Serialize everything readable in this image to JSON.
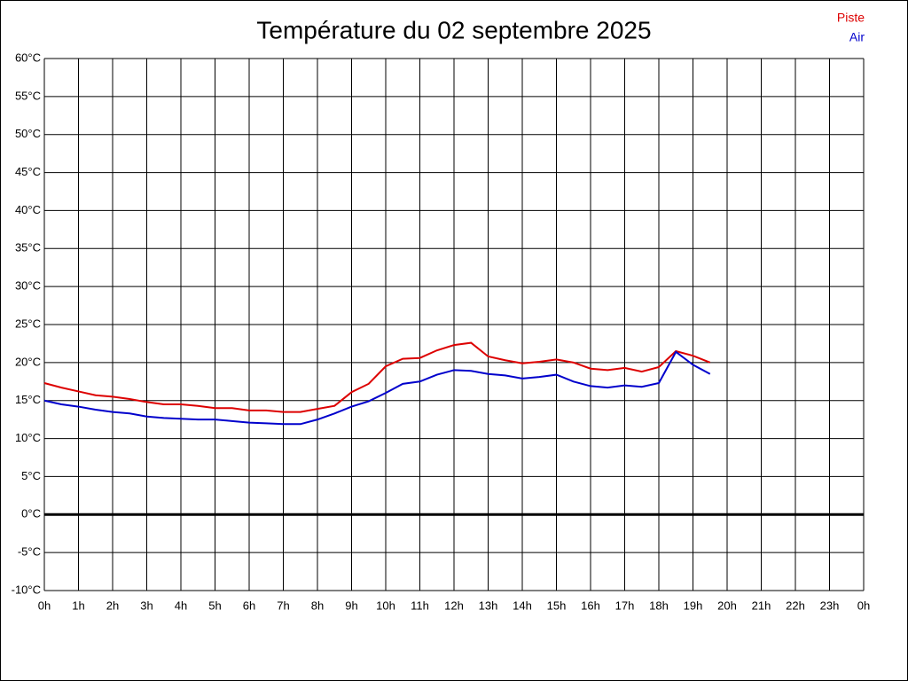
{
  "chart_data": {
    "type": "line",
    "title": "Température du 02 septembre 2025",
    "x": [
      0,
      0.5,
      1,
      1.5,
      2,
      2.5,
      3,
      3.5,
      4,
      4.5,
      5,
      5.5,
      6,
      6.5,
      7,
      7.5,
      8,
      8.5,
      9,
      9.5,
      10,
      10.5,
      11,
      11.5,
      12,
      12.5,
      13,
      13.5,
      14,
      14.5,
      15,
      15.5,
      16,
      16.5,
      17,
      17.5,
      18,
      18.5,
      19,
      19.5
    ],
    "series": [
      {
        "name": "Piste",
        "color": "#dd0000",
        "values": [
          17.3,
          16.7,
          16.2,
          15.7,
          15.5,
          15.2,
          14.8,
          14.5,
          14.5,
          14.3,
          14.0,
          14.0,
          13.7,
          13.7,
          13.5,
          13.5,
          13.9,
          14.3,
          16.1,
          17.2,
          19.5,
          20.5,
          20.6,
          21.6,
          22.3,
          22.6,
          20.8,
          20.3,
          19.9,
          20.1,
          20.4,
          20.0,
          19.2,
          19.0,
          19.3,
          18.8,
          19.4,
          21.5,
          20.9,
          20.0
        ]
      },
      {
        "name": "Air",
        "color": "#0000cc",
        "values": [
          15.0,
          14.5,
          14.2,
          13.8,
          13.5,
          13.3,
          12.9,
          12.7,
          12.6,
          12.5,
          12.5,
          12.3,
          12.1,
          12.0,
          11.9,
          11.9,
          12.5,
          13.3,
          14.2,
          14.9,
          16.0,
          17.2,
          17.5,
          18.4,
          19.0,
          18.9,
          18.5,
          18.3,
          17.9,
          18.1,
          18.4,
          17.5,
          16.9,
          16.7,
          17.0,
          16.8,
          17.3,
          21.4,
          19.7,
          18.5
        ]
      }
    ],
    "xlim": [
      0,
      24
    ],
    "xticks": [
      {
        "value": 0,
        "label": "0h"
      },
      {
        "value": 1,
        "label": "1h"
      },
      {
        "value": 2,
        "label": "2h"
      },
      {
        "value": 3,
        "label": "3h"
      },
      {
        "value": 4,
        "label": "4h"
      },
      {
        "value": 5,
        "label": "5h"
      },
      {
        "value": 6,
        "label": "6h"
      },
      {
        "value": 7,
        "label": "7h"
      },
      {
        "value": 8,
        "label": "8h"
      },
      {
        "value": 9,
        "label": "9h"
      },
      {
        "value": 10,
        "label": "10h"
      },
      {
        "value": 11,
        "label": "11h"
      },
      {
        "value": 12,
        "label": "12h"
      },
      {
        "value": 13,
        "label": "13h"
      },
      {
        "value": 14,
        "label": "14h"
      },
      {
        "value": 15,
        "label": "15h"
      },
      {
        "value": 16,
        "label": "16h"
      },
      {
        "value": 17,
        "label": "17h"
      },
      {
        "value": 18,
        "label": "18h"
      },
      {
        "value": 19,
        "label": "19h"
      },
      {
        "value": 20,
        "label": "20h"
      },
      {
        "value": 21,
        "label": "21h"
      },
      {
        "value": 22,
        "label": "22h"
      },
      {
        "value": 23,
        "label": "23h"
      },
      {
        "value": 24,
        "label": "0h"
      }
    ],
    "ylim": [
      -10,
      60
    ],
    "yticks": [
      {
        "value": -10,
        "label": "-10°C"
      },
      {
        "value": -5,
        "label": "-5°C"
      },
      {
        "value": 0,
        "label": "0°C"
      },
      {
        "value": 5,
        "label": "5°C"
      },
      {
        "value": 10,
        "label": "10°C"
      },
      {
        "value": 15,
        "label": "15°C"
      },
      {
        "value": 20,
        "label": "20°C"
      },
      {
        "value": 25,
        "label": "25°C"
      },
      {
        "value": 30,
        "label": "30°C"
      },
      {
        "value": 35,
        "label": "35°C"
      },
      {
        "value": 40,
        "label": "40°C"
      },
      {
        "value": 45,
        "label": "45°C"
      },
      {
        "value": 50,
        "label": "50°C"
      },
      {
        "value": 55,
        "label": "55°C"
      },
      {
        "value": 60,
        "label": "60°C"
      }
    ],
    "grid": true,
    "legend": "top-right"
  }
}
